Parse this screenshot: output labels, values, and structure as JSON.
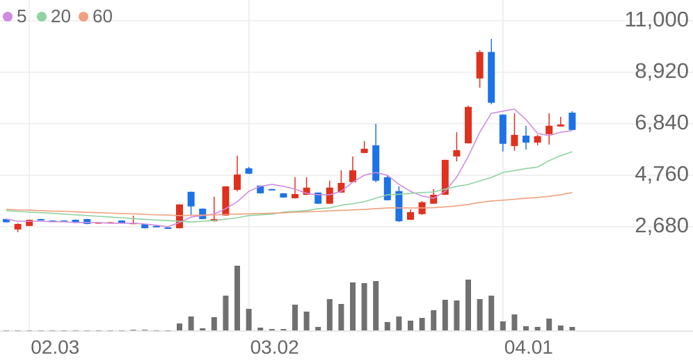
{
  "chart_data": {
    "type": "candlestick",
    "categories": [
      null,
      null,
      "02.03",
      null,
      null,
      null,
      null,
      null,
      null,
      null,
      null,
      null,
      null,
      null,
      null,
      null,
      null,
      null,
      null,
      null,
      null,
      "03.02",
      null,
      null,
      null,
      null,
      null,
      null,
      null,
      null,
      null,
      null,
      null,
      null,
      null,
      null,
      null,
      null,
      null,
      null,
      null,
      null,
      null,
      "04.01",
      null,
      null,
      null,
      null,
      null,
      null
    ],
    "open": [
      2990,
      2570,
      2710,
      2990,
      2930,
      2930,
      2960,
      2990,
      2830,
      2830,
      2930,
      2790,
      2790,
      2710,
      2650,
      2620,
      4090,
      3410,
      2900,
      3130,
      4170,
      5040,
      4340,
      4200,
      4030,
      3830,
      3970,
      4060,
      3610,
      4060,
      4480,
      5660,
      5970,
      4680,
      4120,
      2960,
      3190,
      3610,
      3970,
      5520,
      6050,
      8670,
      9740,
      7210,
      5940,
      6360,
      6080,
      6420,
      6730,
      7290
    ],
    "high": [
      3000,
      2820,
      2970,
      3000,
      2940,
      2940,
      2970,
      3000,
      2870,
      2870,
      2940,
      3130,
      2800,
      2720,
      2660,
      3590,
      4100,
      3420,
      3890,
      4320,
      5550,
      5100,
      4350,
      4210,
      4040,
      4680,
      4680,
      4070,
      4540,
      4960,
      5520,
      6140,
      6840,
      4760,
      4310,
      3380,
      3720,
      4200,
      5390,
      6500,
      7570,
      9820,
      10270,
      7220,
      7260,
      6760,
      6390,
      7260,
      7120,
      7350
    ],
    "low": [
      2850,
      2460,
      2700,
      2950,
      2890,
      2890,
      2840,
      2780,
      2820,
      2820,
      2810,
      2780,
      2610,
      2670,
      2610,
      2610,
      3130,
      2980,
      2890,
      3120,
      4110,
      4810,
      4020,
      4170,
      3850,
      3820,
      3960,
      3600,
      3600,
      4050,
      4470,
      5650,
      4480,
      3740,
      2870,
      2950,
      3160,
      3600,
      3960,
      5320,
      6040,
      8300,
      7630,
      5720,
      5750,
      5800,
      5970,
      6000,
      6720,
      6580
    ],
    "close": [
      2860,
      2790,
      2960,
      2960,
      2900,
      2900,
      2850,
      2790,
      2860,
      2860,
      2820,
      2840,
      2620,
      2680,
      2620,
      3580,
      3500,
      2990,
      2990,
      4310,
      4790,
      4820,
      4030,
      4180,
      3860,
      4000,
      4260,
      3610,
      4260,
      4450,
      4960,
      5830,
      4540,
      3750,
      2900,
      3270,
      3670,
      3970,
      5380,
      5770,
      7520,
      9740,
      7690,
      6030,
      6390,
      6080,
      6340,
      6760,
      6810,
      6590
    ],
    "volume": [
      0,
      0,
      0,
      0,
      0,
      0,
      0,
      0,
      0,
      0,
      0,
      1,
      1,
      0,
      0,
      10,
      20,
      3,
      19,
      50,
      93,
      31,
      4,
      2,
      2,
      37,
      27,
      5,
      45,
      38,
      69,
      68,
      71,
      12,
      20,
      14,
      18,
      29,
      44,
      43,
      73,
      45,
      50,
      13,
      23,
      6,
      5,
      17,
      7,
      5
    ],
    "up_color": "#e0301e",
    "down_color": "#1c72e6",
    "volume_color": "#707070",
    "series": [
      {
        "name": "5",
        "color": "#d08be0",
        "values": [
          2990,
          2900,
          2900,
          2900,
          2880,
          2880,
          2850,
          2850,
          2850,
          2820,
          2820,
          2820,
          2790,
          2740,
          2680,
          2850,
          3070,
          3130,
          3190,
          3410,
          3690,
          4110,
          4310,
          4390,
          4310,
          4200,
          4030,
          3970,
          3970,
          4110,
          4480,
          4760,
          4870,
          4760,
          4390,
          4110,
          3920,
          3830,
          4110,
          4680,
          5520,
          6500,
          7260,
          7350,
          7430,
          7010,
          6450,
          6360,
          6500,
          6560
        ]
      },
      {
        "name": "20",
        "color": "#8ed3a0",
        "values": [
          3330,
          3300,
          3270,
          3250,
          3220,
          3190,
          3160,
          3130,
          3100,
          3070,
          3040,
          3010,
          2980,
          2950,
          2930,
          2900,
          2870,
          2900,
          2930,
          2990,
          3040,
          3130,
          3160,
          3190,
          3270,
          3300,
          3330,
          3410,
          3440,
          3550,
          3610,
          3690,
          3830,
          3970,
          3990,
          4030,
          4060,
          4080,
          4200,
          4310,
          4390,
          4530,
          4670,
          4870,
          4950,
          5030,
          5090,
          5350,
          5550,
          5710
        ]
      },
      {
        "name": "60",
        "color": "#f0a07e",
        "values": [
          3380,
          3360,
          3350,
          3330,
          3310,
          3300,
          3280,
          3260,
          3250,
          3230,
          3210,
          3200,
          3180,
          3160,
          3150,
          3130,
          3140,
          3150,
          3160,
          3170,
          3190,
          3200,
          3210,
          3230,
          3240,
          3270,
          3280,
          3300,
          3320,
          3340,
          3360,
          3380,
          3410,
          3440,
          3440,
          3440,
          3440,
          3450,
          3480,
          3520,
          3580,
          3660,
          3720,
          3750,
          3790,
          3830,
          3860,
          3910,
          3970,
          4060
        ]
      }
    ],
    "ylim": [
      2060,
      11560
    ],
    "yticks": [
      {
        "value": 2680,
        "label": "2,680"
      },
      {
        "value": 4760,
        "label": "4,760"
      },
      {
        "value": 6840,
        "label": "6,840"
      },
      {
        "value": 8920,
        "label": "8,920"
      },
      {
        "value": 11000,
        "label": "11,000"
      }
    ],
    "volume_ylim": [
      0,
      100
    ],
    "grid": true
  }
}
